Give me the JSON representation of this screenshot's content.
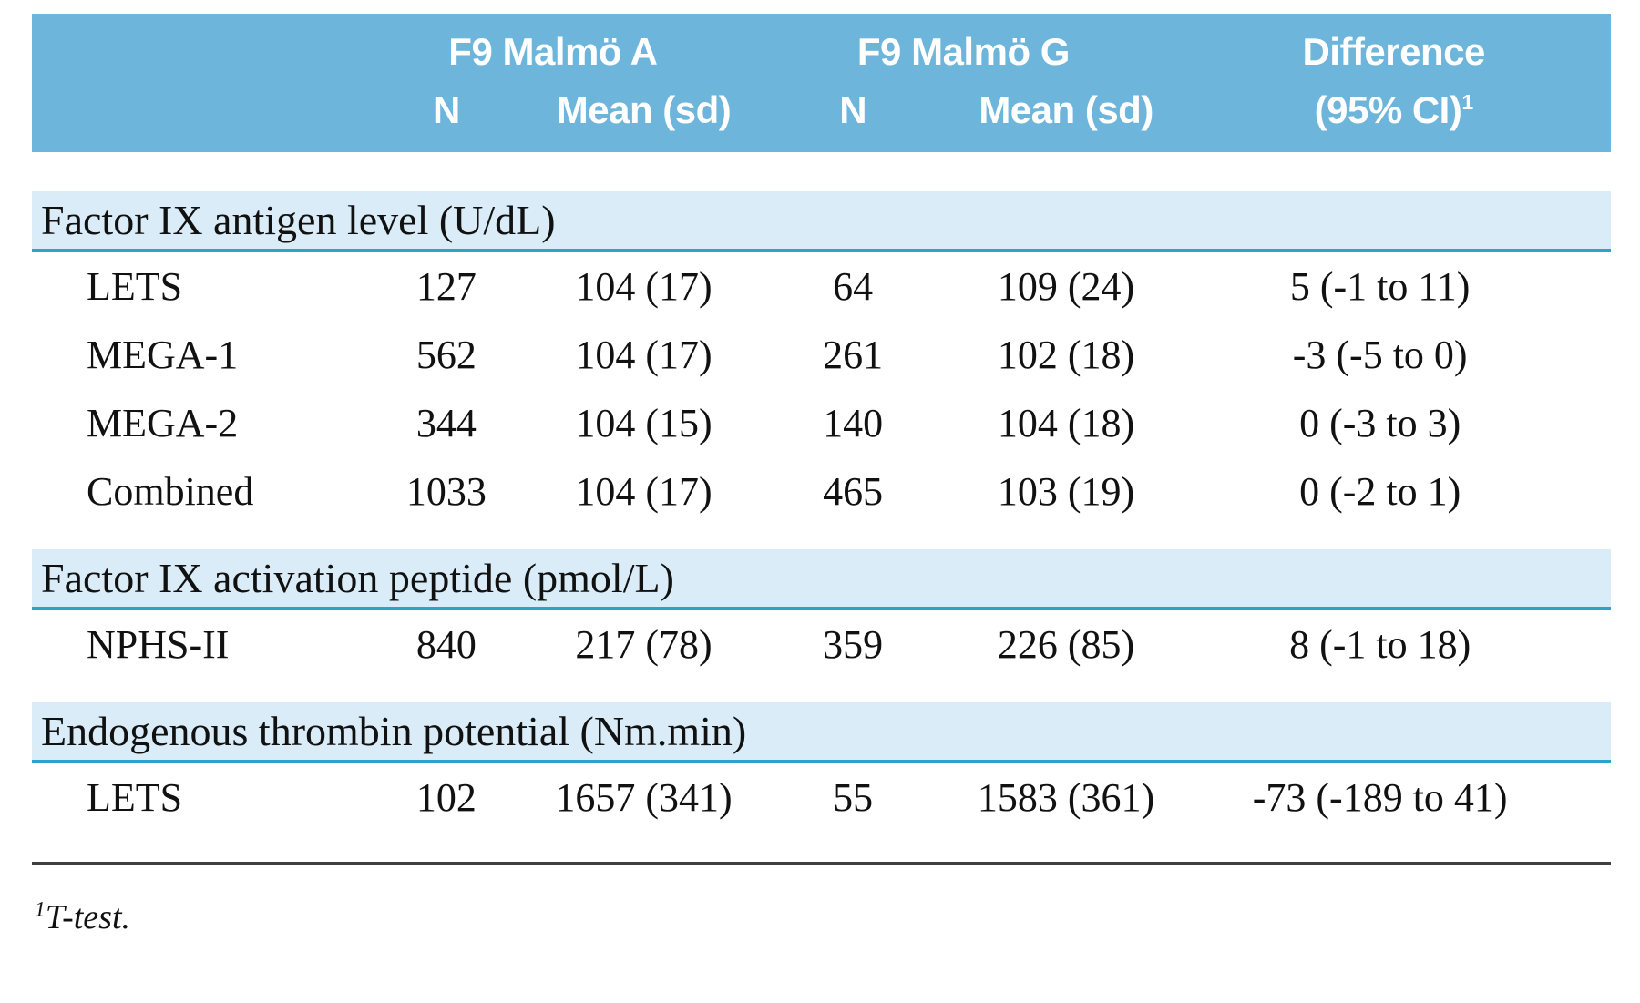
{
  "colors": {
    "header_bg": "#6db5da",
    "header_text": "#ffffff",
    "section_band_bg": "#d9ecf7",
    "section_rule": "#2ba4c9",
    "body_text": "#111111",
    "bottom_rule": "#3f3f3f"
  },
  "table": {
    "header": {
      "group_a": "F9 Malmö A",
      "group_g": "F9 Malmö G",
      "difference_line1": "Difference",
      "difference_line2": "(95% CI)",
      "difference_sup": "1",
      "n_label": "N",
      "mean_label": "Mean (sd)"
    },
    "sections": [
      {
        "title": "Factor IX antigen level (U/dL)",
        "rows": [
          {
            "label": "LETS",
            "n_a": "127",
            "mean_a": "104 (17)",
            "n_g": "64",
            "mean_g": "109 (24)",
            "diff": "5 (-1 to 11)"
          },
          {
            "label": "MEGA-1",
            "n_a": "562",
            "mean_a": "104 (17)",
            "n_g": "261",
            "mean_g": "102 (18)",
            "diff": "-3 (-5 to 0)"
          },
          {
            "label": "MEGA-2",
            "n_a": "344",
            "mean_a": "104 (15)",
            "n_g": "140",
            "mean_g": "104 (18)",
            "diff": "0 (-3 to 3)"
          },
          {
            "label": "Combined",
            "n_a": "1033",
            "mean_a": "104 (17)",
            "n_g": "465",
            "mean_g": "103 (19)",
            "diff": "0 (-2 to 1)"
          }
        ]
      },
      {
        "title": "Factor IX activation peptide (pmol/L)",
        "rows": [
          {
            "label": "NPHS-II",
            "n_a": "840",
            "mean_a": "217 (78)",
            "n_g": "359",
            "mean_g": "226 (85)",
            "diff": "8 (-1 to 18)"
          }
        ]
      },
      {
        "title": "Endogenous thrombin potential (Nm.min)",
        "rows": [
          {
            "label": "LETS",
            "n_a": "102",
            "mean_a": "1657 (341)",
            "n_g": "55",
            "mean_g": "1583 (361)",
            "diff": "-73 (-189 to 41)"
          }
        ]
      }
    ],
    "footnote": {
      "sup": "1",
      "text": "T-test."
    }
  }
}
